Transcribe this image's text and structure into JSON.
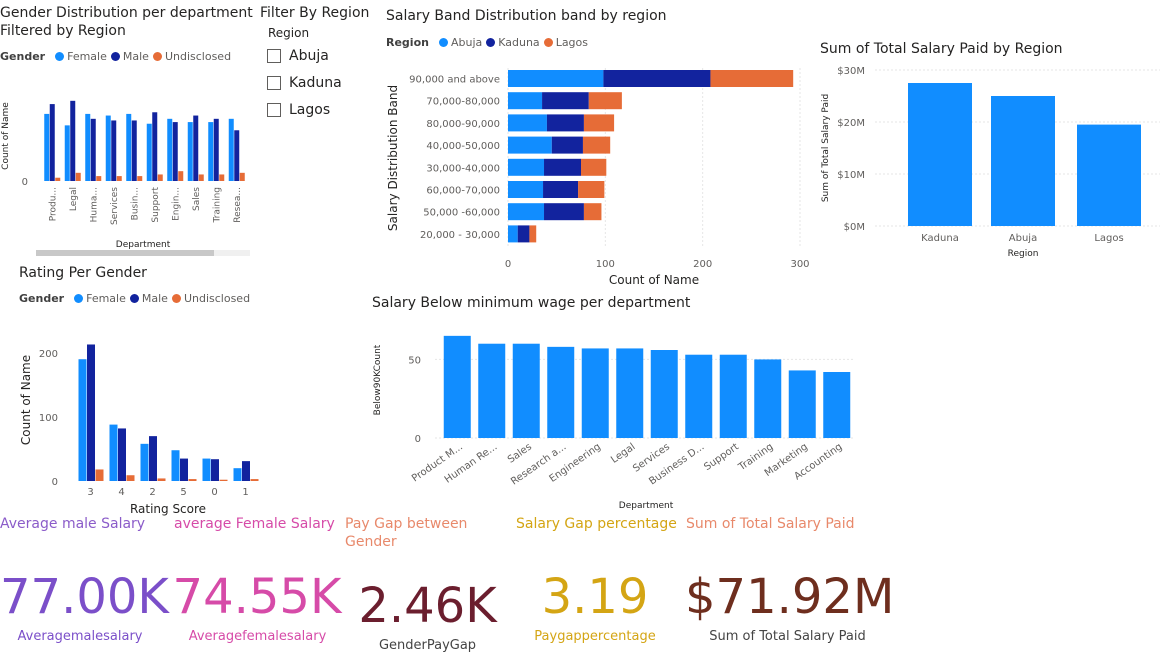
{
  "colors": {
    "female": "#118DFF",
    "male": "#12239E",
    "undisclosed": "#E66C37",
    "abuja": "#118DFF",
    "kaduna": "#12239E",
    "lagos": "#E66C37",
    "single": "#118DFF"
  },
  "gender_chart": {
    "title_line1": "Gender Distribution per department",
    "title_line2": "Filtered by Region",
    "legend_title": "Gender",
    "legend": [
      "Female",
      "Male",
      "Undisclosed"
    ],
    "ylabel": "Count of Name",
    "xlabel": "Department",
    "ytick": "0"
  },
  "slicer": {
    "title": "Filter By Region",
    "header": "Region",
    "items": [
      "Abuja",
      "Kaduna",
      "Lagos"
    ]
  },
  "band_chart": {
    "title": "Salary Band Distribution band by region",
    "legend_title": "Region",
    "legend": [
      "Abuja",
      "Kaduna",
      "Lagos"
    ],
    "ylabel": "Salary Distribution Band",
    "xlabel": "Count of Name"
  },
  "region_chart": {
    "title": "Sum of Total Salary Paid by Region",
    "ylabel": "Sum of Total Salary Paid",
    "xlabel": "Region"
  },
  "rating_chart": {
    "title": "Rating Per Gender",
    "legend_title": "Gender",
    "legend": [
      "Female",
      "Male",
      "Undisclosed"
    ],
    "ylabel": "Count of Name",
    "xlabel": "Rating Score"
  },
  "minwage_chart": {
    "title": "Salary Below minimum wage per department",
    "ylabel": "Below90KCount",
    "xlabel": "Department"
  },
  "kpis": [
    {
      "label": "Average male Salary",
      "value": "77.00K",
      "sub": "Averagemalesalary",
      "color": "#7B4FC9",
      "label_color": "#8B5CC9"
    },
    {
      "label": "average Female Salary",
      "value": "74.55K",
      "sub": "Averagefemalesalary",
      "color": "#D64BA8",
      "label_color": "#D64BA8"
    },
    {
      "label": "Pay Gap between Gender",
      "value": "2.46K",
      "sub": "GenderPayGap",
      "color": "#6B1E2E",
      "label_color": "#E8896B"
    },
    {
      "label": "Salary Gap percentage",
      "value": "3.19",
      "sub": "Paygappercentage",
      "color": "#D4A514",
      "label_color": "#D4A514"
    },
    {
      "label": "Sum of Total Salary Paid",
      "value": "$71.92M",
      "sub": "Sum of Total Salary Paid",
      "color": "#6E2E1E",
      "label_color": "#E8896B"
    }
  ],
  "chart_data": [
    {
      "type": "bar",
      "title": "Gender Distribution per department Filtered by Region",
      "xlabel": "Department",
      "ylabel": "Count of Name",
      "categories": [
        "Produ...",
        "Legal",
        "Huma...",
        "Services",
        "Busin...",
        "Support",
        "Engin...",
        "Sales",
        "Training",
        "Resea..."
      ],
      "series": [
        {
          "name": "Female",
          "values": [
            41,
            34,
            41,
            40,
            41,
            35,
            38,
            36,
            36,
            38
          ]
        },
        {
          "name": "Male",
          "values": [
            47,
            49,
            38,
            37,
            37,
            42,
            36,
            40,
            38,
            31
          ]
        },
        {
          "name": "Undisclosed",
          "values": [
            2,
            5,
            3,
            3,
            3,
            4,
            6,
            4,
            4,
            5
          ]
        }
      ],
      "ylim": [
        0,
        55
      ],
      "yticks": [
        0
      ],
      "legend": "top-left"
    },
    {
      "type": "bar",
      "orientation": "horizontal",
      "stacked": true,
      "title": "Salary Band Distribution band by region",
      "xlabel": "Count of Name",
      "ylabel": "Salary Distribution Band",
      "categories": [
        "90,000 and above",
        "70,000-80,000",
        "80,000-90,000",
        "40,000-50,000",
        "30,000-40,000",
        "60,000-70,000",
        "50,000 -60,000",
        "20,000 - 30,000"
      ],
      "series": [
        {
          "name": "Abuja",
          "values": [
            98,
            35,
            40,
            45,
            37,
            36,
            37,
            10
          ]
        },
        {
          "name": "Kaduna",
          "values": [
            110,
            48,
            38,
            32,
            38,
            36,
            41,
            12
          ]
        },
        {
          "name": "Lagos",
          "values": [
            85,
            34,
            31,
            28,
            26,
            27,
            18,
            7
          ]
        }
      ],
      "xlim": [
        0,
        300
      ],
      "xticks": [
        0,
        100,
        200,
        300
      ],
      "legend": "top-left"
    },
    {
      "type": "bar",
      "title": "Sum of Total Salary Paid by Region",
      "xlabel": "Region",
      "ylabel": "Sum of Total Salary Paid",
      "categories": [
        "Kaduna",
        "Abuja",
        "Lagos"
      ],
      "values": [
        27.5,
        25.0,
        19.5
      ],
      "ylim": [
        0,
        30
      ],
      "yticks": [
        0,
        10,
        20,
        30
      ],
      "ytick_labels": [
        "$0M",
        "$10M",
        "$20M",
        "$30M"
      ]
    },
    {
      "type": "bar",
      "title": "Rating Per Gender",
      "xlabel": "Rating Score",
      "ylabel": "Count of Name",
      "categories": [
        "3",
        "4",
        "2",
        "5",
        "0",
        "1"
      ],
      "series": [
        {
          "name": "Female",
          "values": [
            190,
            88,
            58,
            48,
            35,
            20
          ]
        },
        {
          "name": "Male",
          "values": [
            213,
            82,
            70,
            35,
            34,
            31
          ]
        },
        {
          "name": "Undisclosed",
          "values": [
            18,
            9,
            4,
            3,
            2,
            3
          ]
        }
      ],
      "ylim": [
        0,
        220
      ],
      "yticks": [
        0,
        100,
        200
      ],
      "legend": "top-left"
    },
    {
      "type": "bar",
      "title": "Salary Below minimum wage per department",
      "xlabel": "Department",
      "ylabel": "Below90KCount",
      "categories": [
        "Product M...",
        "Human Re...",
        "Sales",
        "Research a...",
        "Engineering",
        "Legal",
        "Services",
        "Business D...",
        "Support",
        "Training",
        "Marketing",
        "Accounting"
      ],
      "values": [
        65,
        60,
        60,
        58,
        57,
        57,
        56,
        53,
        53,
        50,
        43,
        42
      ],
      "ylim": [
        0,
        70
      ],
      "yticks": [
        0,
        50
      ]
    }
  ]
}
